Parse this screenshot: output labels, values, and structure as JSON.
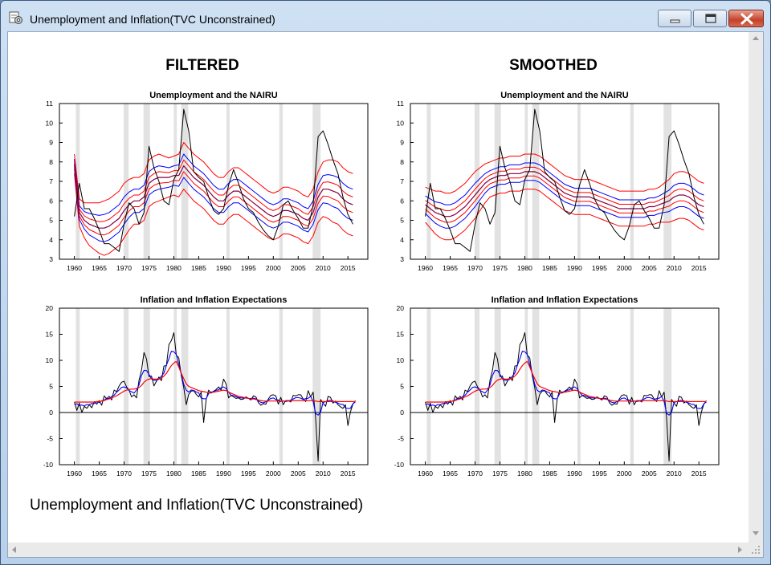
{
  "window": {
    "title": "Unemployment and Inflation(TVC Unconstrained)"
  },
  "columns": [
    {
      "heading": "FILTERED",
      "panels": [
        {
          "title": "Unemployment and the NAIRU",
          "ylim": [
            3,
            11
          ],
          "yticks": [
            3,
            4,
            5,
            6,
            7,
            8,
            9,
            10,
            11
          ],
          "kind": "u"
        },
        {
          "title": "Inflation and Inflation Expectations",
          "ylim": [
            -10,
            20
          ],
          "yticks": [
            -10,
            -5,
            0,
            5,
            10,
            15,
            20
          ],
          "kind": "pi"
        }
      ]
    },
    {
      "heading": "SMOOTHED",
      "panels": [
        {
          "title": "Unemployment and the NAIRU",
          "ylim": [
            3,
            11
          ],
          "yticks": [
            3,
            4,
            5,
            6,
            7,
            8,
            9,
            10,
            11
          ],
          "kind": "u"
        },
        {
          "title": "Inflation and Inflation Expectations",
          "ylim": [
            -10,
            20
          ],
          "yticks": [
            -10,
            -5,
            0,
            5,
            10,
            15,
            20
          ],
          "kind": "pi"
        }
      ]
    }
  ],
  "caption": "Unemployment and Inflation(TVC Unconstrained)",
  "chart_data": {
    "type": "line",
    "xlim": [
      1957,
      2019
    ],
    "xticks": [
      1960,
      1965,
      1970,
      1975,
      1980,
      1985,
      1990,
      1995,
      2000,
      2005,
      2010,
      2015
    ],
    "recessions": [
      [
        1960.3,
        1961.1
      ],
      [
        1969.9,
        1970.9
      ],
      [
        1973.9,
        1975.2
      ],
      [
        1980.0,
        1980.6
      ],
      [
        1981.5,
        1982.9
      ],
      [
        1990.6,
        1991.2
      ],
      [
        2001.2,
        2001.9
      ],
      [
        2007.9,
        2009.5
      ]
    ],
    "series_colors": {
      "actual": "#000000",
      "bands": "#ff0000",
      "central": "#0000ff",
      "center": "#800040"
    },
    "unemployment": {
      "years": [
        1960,
        1961,
        1962,
        1963,
        1964,
        1965,
        1966,
        1967,
        1968,
        1969,
        1970,
        1971,
        1972,
        1973,
        1974,
        1975,
        1976,
        1977,
        1978,
        1979,
        1980,
        1981,
        1982,
        1983,
        1984,
        1985,
        1986,
        1987,
        1988,
        1989,
        1990,
        1991,
        1992,
        1993,
        1994,
        1995,
        1996,
        1997,
        1998,
        1999,
        2000,
        2001,
        2002,
        2003,
        2004,
        2005,
        2006,
        2007,
        2008,
        2009,
        2010,
        2011,
        2012,
        2013,
        2014,
        2015,
        2016
      ],
      "actual": [
        5.2,
        6.9,
        5.6,
        5.6,
        5.1,
        4.5,
        3.8,
        3.8,
        3.6,
        3.4,
        4.8,
        5.9,
        5.6,
        4.8,
        5.4,
        8.8,
        7.7,
        7.0,
        6.0,
        5.8,
        7.1,
        7.6,
        10.7,
        9.6,
        7.5,
        7.2,
        7.0,
        6.2,
        5.5,
        5.3,
        5.6,
        6.8,
        7.6,
        6.9,
        6.1,
        5.6,
        5.4,
        4.9,
        4.5,
        4.2,
        4.0,
        4.7,
        5.8,
        6.0,
        5.5,
        5.1,
        4.6,
        4.6,
        5.8,
        9.3,
        9.6,
        8.9,
        8.1,
        7.4,
        6.2,
        5.3,
        4.8
      ],
      "filtered_central": [
        7.9,
        5.4,
        5.0,
        4.8,
        4.7,
        4.6,
        4.6,
        4.7,
        4.9,
        5.1,
        5.5,
        5.8,
        6.0,
        6.0,
        6.2,
        6.9,
        7.1,
        7.2,
        7.2,
        7.2,
        7.3,
        7.3,
        7.8,
        7.5,
        7.2,
        7.0,
        6.8,
        6.5,
        6.2,
        6.0,
        6.0,
        6.3,
        6.5,
        6.5,
        6.3,
        6.1,
        5.9,
        5.7,
        5.5,
        5.3,
        5.2,
        5.3,
        5.5,
        5.5,
        5.4,
        5.3,
        5.1,
        5.0,
        5.4,
        6.2,
        6.6,
        6.6,
        6.5,
        6.4,
        6.1,
        5.9,
        5.8
      ],
      "filtered_spread": [
        0.25,
        0.35,
        0.45,
        0.55,
        0.6,
        0.65,
        0.7,
        0.7,
        0.7,
        0.7,
        0.7,
        0.65,
        0.6,
        0.6,
        0.6,
        0.6,
        0.6,
        0.6,
        0.55,
        0.5,
        0.5,
        0.55,
        0.6,
        0.6,
        0.6,
        0.6,
        0.6,
        0.6,
        0.6,
        0.6,
        0.6,
        0.6,
        0.6,
        0.6,
        0.6,
        0.6,
        0.6,
        0.6,
        0.6,
        0.6,
        0.6,
        0.6,
        0.6,
        0.6,
        0.6,
        0.6,
        0.6,
        0.6,
        0.6,
        0.65,
        0.7,
        0.75,
        0.8,
        0.8,
        0.8,
        0.8,
        0.8
      ],
      "smoothed_central": [
        5.8,
        5.6,
        5.4,
        5.3,
        5.2,
        5.2,
        5.3,
        5.5,
        5.7,
        6.0,
        6.3,
        6.6,
        6.9,
        7.1,
        7.2,
        7.3,
        7.3,
        7.4,
        7.4,
        7.4,
        7.5,
        7.5,
        7.5,
        7.4,
        7.2,
        7.0,
        6.8,
        6.6,
        6.4,
        6.3,
        6.2,
        6.2,
        6.2,
        6.2,
        6.1,
        6.0,
        5.9,
        5.8,
        5.7,
        5.6,
        5.6,
        5.6,
        5.6,
        5.6,
        5.6,
        5.7,
        5.7,
        5.8,
        5.9,
        6.0,
        6.2,
        6.3,
        6.3,
        6.2,
        6.0,
        5.8,
        5.7
      ],
      "smoothed_spread": [
        0.45,
        0.5,
        0.55,
        0.6,
        0.6,
        0.6,
        0.6,
        0.6,
        0.6,
        0.6,
        0.6,
        0.55,
        0.5,
        0.45,
        0.45,
        0.45,
        0.45,
        0.45,
        0.45,
        0.45,
        0.45,
        0.45,
        0.45,
        0.45,
        0.45,
        0.45,
        0.45,
        0.45,
        0.45,
        0.45,
        0.45,
        0.45,
        0.45,
        0.45,
        0.45,
        0.45,
        0.45,
        0.45,
        0.45,
        0.45,
        0.45,
        0.45,
        0.45,
        0.45,
        0.45,
        0.45,
        0.45,
        0.45,
        0.5,
        0.55,
        0.6,
        0.6,
        0.6,
        0.6,
        0.6,
        0.6,
        0.6
      ]
    },
    "inflation": {
      "years": [
        1960,
        1960.5,
        1961,
        1961.5,
        1962,
        1962.5,
        1963,
        1963.5,
        1964,
        1964.5,
        1965,
        1965.5,
        1966,
        1966.5,
        1967,
        1967.5,
        1968,
        1968.5,
        1969,
        1969.5,
        1970,
        1970.5,
        1971,
        1971.5,
        1972,
        1972.5,
        1973,
        1973.5,
        1974,
        1974.5,
        1975,
        1975.5,
        1976,
        1976.5,
        1977,
        1977.5,
        1978,
        1978.5,
        1979,
        1979.5,
        1980,
        1980.5,
        1981,
        1981.5,
        1982,
        1982.5,
        1983,
        1983.5,
        1984,
        1984.5,
        1985,
        1985.5,
        1986,
        1986.5,
        1987,
        1987.5,
        1988,
        1988.5,
        1989,
        1989.5,
        1990,
        1990.5,
        1991,
        1991.5,
        1992,
        1992.5,
        1993,
        1993.5,
        1994,
        1994.5,
        1995,
        1995.5,
        1996,
        1996.5,
        1997,
        1997.5,
        1998,
        1998.5,
        1999,
        1999.5,
        2000,
        2000.5,
        2001,
        2001.5,
        2002,
        2002.5,
        2003,
        2003.5,
        2004,
        2004.5,
        2005,
        2005.5,
        2006,
        2006.5,
        2007,
        2007.5,
        2008,
        2008.5,
        2009,
        2009.5,
        2010,
        2010.5,
        2011,
        2011.5,
        2012,
        2012.5,
        2013,
        2013.5,
        2014,
        2014.5,
        2015,
        2015.5,
        2016,
        2016.5
      ],
      "actual": [
        2.0,
        0.4,
        1.8,
        0.0,
        1.2,
        0.8,
        1.5,
        0.9,
        2.1,
        1.6,
        2.3,
        1.4,
        3.2,
        2.6,
        3.1,
        2.4,
        4.3,
        4.0,
        5.1,
        5.8,
        6.0,
        4.9,
        4.3,
        3.0,
        3.4,
        2.8,
        6.2,
        8.1,
        11.5,
        10.3,
        6.9,
        7.0,
        5.1,
        6.0,
        6.8,
        6.1,
        8.9,
        9.0,
        13.0,
        13.8,
        15.3,
        11.0,
        10.5,
        7.1,
        4.8,
        1.5,
        3.5,
        4.1,
        4.2,
        3.5,
        3.0,
        3.9,
        -1.9,
        2.5,
        4.3,
        3.7,
        4.1,
        4.4,
        4.9,
        4.3,
        6.4,
        5.5,
        2.8,
        3.3,
        3.0,
        2.7,
        2.8,
        2.5,
        2.6,
        3.0,
        2.7,
        2.4,
        3.2,
        3.0,
        1.9,
        1.4,
        1.7,
        1.6,
        2.6,
        3.3,
        3.4,
        3.2,
        1.6,
        2.9,
        1.5,
        2.3,
        2.3,
        2.0,
        3.3,
        3.2,
        3.4,
        3.4,
        2.6,
        2.1,
        4.2,
        3.0,
        3.9,
        -1.0,
        -9.3,
        2.5,
        1.8,
        1.2,
        3.1,
        2.9,
        1.8,
        2.2,
        1.5,
        1.1,
        0.8,
        1.5,
        -2.5,
        0.1,
        1.6,
        2.3,
        2.0,
        2.5
      ],
      "expectations": [
        2.0,
        2.0,
        2.0,
        2.0,
        2.0,
        2.0,
        2.0,
        2.0,
        2.0,
        2.1,
        2.1,
        2.2,
        2.3,
        2.5,
        2.6,
        2.8,
        3.0,
        3.2,
        3.5,
        3.8,
        4.1,
        4.3,
        4.4,
        4.5,
        4.5,
        4.6,
        4.8,
        5.2,
        5.8,
        6.2,
        6.4,
        6.5,
        6.4,
        6.4,
        6.5,
        6.6,
        7.0,
        7.5,
        8.3,
        9.0,
        9.5,
        9.8,
        8.7,
        7.5,
        6.5,
        5.5,
        5.0,
        4.8,
        4.6,
        4.4,
        4.2,
        4.1,
        4.0,
        3.9,
        3.8,
        3.8,
        3.9,
        4.0,
        4.1,
        4.2,
        4.3,
        4.2,
        3.9,
        3.7,
        3.5,
        3.3,
        3.1,
        3.0,
        2.9,
        2.8,
        2.7,
        2.6,
        2.6,
        2.5,
        2.4,
        2.3,
        2.2,
        2.2,
        2.2,
        2.2,
        2.2,
        2.2,
        2.2,
        2.2,
        2.2,
        2.2,
        2.2,
        2.2,
        2.3,
        2.3,
        2.3,
        2.3,
        2.3,
        2.3,
        2.3,
        2.3,
        2.3,
        2.2,
        2.1,
        2.1,
        2.1,
        2.1,
        2.1,
        2.1,
        2.1,
        2.1,
        2.1,
        2.1,
        2.1,
        2.1,
        2.1,
        2.1,
        2.1,
        2.1,
        2.1,
        2.1
      ]
    }
  }
}
